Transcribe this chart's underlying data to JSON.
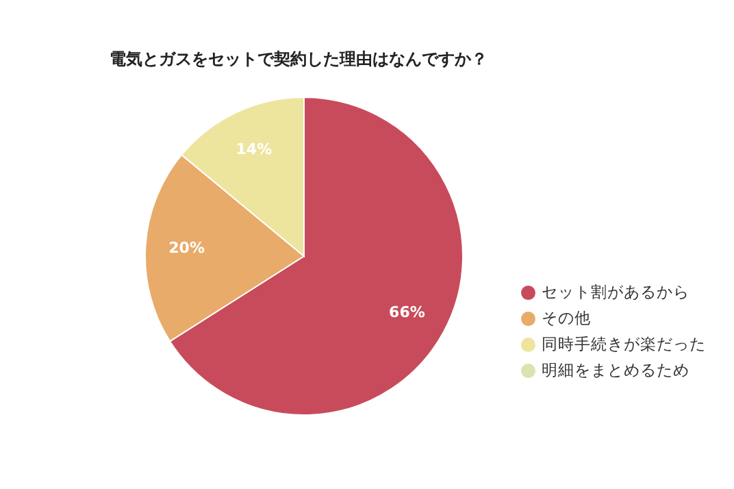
{
  "chart_data": {
    "type": "pie",
    "title": "電気とガスをセットで契約した理由はなんですか？",
    "categories": [
      "セット割があるから",
      "その他",
      "同時手続きが楽だった",
      "明細をまとめるため"
    ],
    "values": [
      66,
      20,
      14,
      0
    ],
    "colors": [
      "#c84b5b",
      "#e8ab6a",
      "#ede59e",
      "#d8e5b0"
    ],
    "value_labels": [
      "66%",
      "20%",
      "14%",
      null
    ],
    "legend": "right"
  }
}
